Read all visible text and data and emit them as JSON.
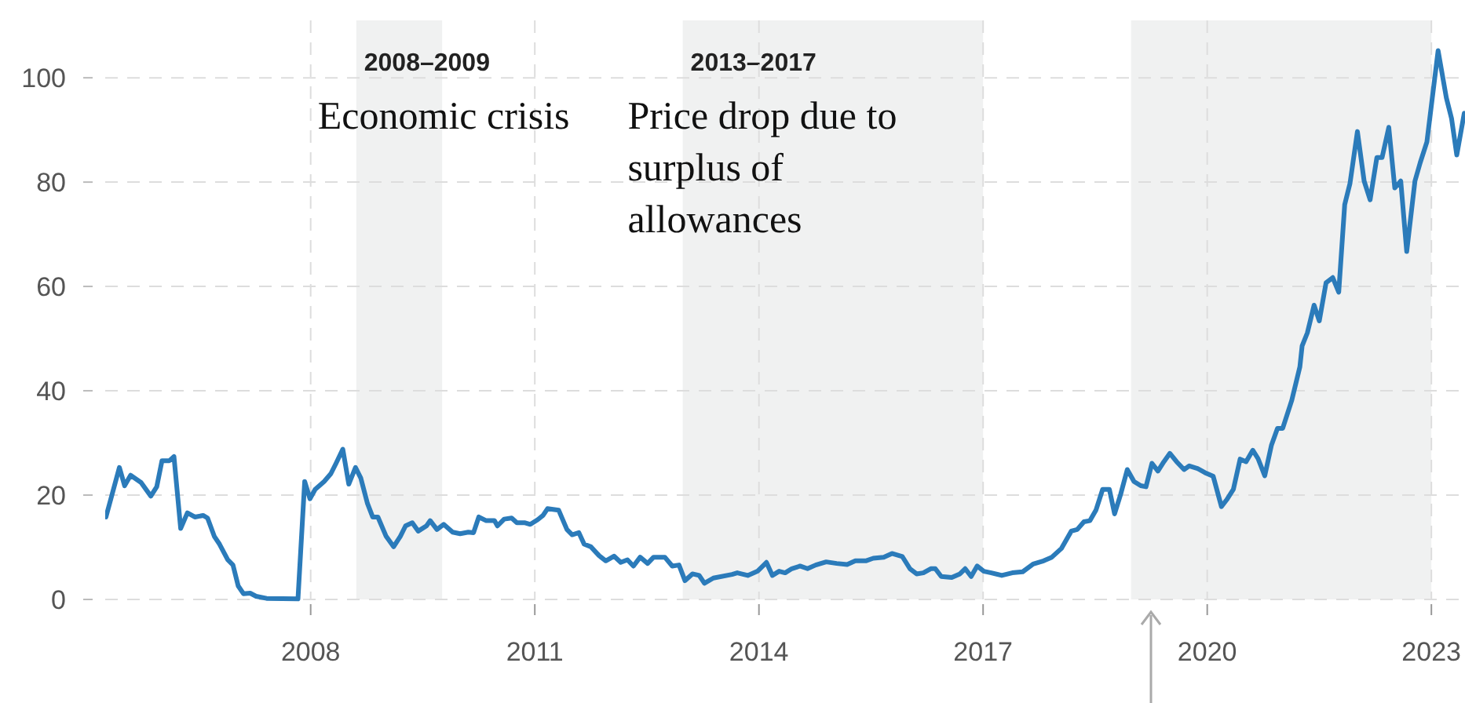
{
  "chart_data": {
    "type": "line",
    "xlim": [
      2005.25,
      2023.45
    ],
    "ylim": [
      0,
      111
    ],
    "xticks": [
      2008,
      2011,
      2014,
      2017,
      2020,
      2023
    ],
    "yticks": [
      0,
      20,
      40,
      60,
      80,
      100
    ],
    "grid": true,
    "marker": "none",
    "line_style": "solid",
    "bands": [
      {
        "axis": "x",
        "from": 2008.61,
        "to": 2009.76,
        "label": "2008–2009",
        "color": "#f0f1f1"
      },
      {
        "axis": "x",
        "from": 2012.98,
        "to": 2017.0,
        "label": "2013–2017",
        "color": "#f0f1f1"
      },
      {
        "axis": "x",
        "from": 2018.98,
        "to": 2023.0,
        "color": "#f0f1f1"
      }
    ],
    "annotations": [
      "Economic crisis",
      "Price drop due to\nsurplus of\nallowances"
    ],
    "series": [
      {
        "color": "#2b7bba",
        "x": [
          2005.26,
          2005.44,
          2005.51,
          2005.59,
          2005.73,
          2005.86,
          2005.94,
          2006.01,
          2006.11,
          2006.17,
          2006.26,
          2006.35,
          2006.45,
          2006.56,
          2006.62,
          2006.71,
          2006.78,
          2006.89,
          2006.96,
          2007.03,
          2007.1,
          2007.19,
          2007.27,
          2007.41,
          2007.83,
          2007.92,
          2007.99,
          2008.06,
          2008.18,
          2008.27,
          2008.34,
          2008.43,
          2008.51,
          2008.6,
          2008.67,
          2008.76,
          2008.83,
          2008.9,
          2009.01,
          2009.11,
          2009.2,
          2009.27,
          2009.36,
          2009.44,
          2009.55,
          2009.6,
          2009.69,
          2009.78,
          2009.9,
          2010.0,
          2010.11,
          2010.18,
          2010.25,
          2010.35,
          2010.46,
          2010.5,
          2010.59,
          2010.69,
          2010.76,
          2010.87,
          2010.94,
          2011.04,
          2011.11,
          2011.17,
          2011.32,
          2011.43,
          2011.5,
          2011.59,
          2011.66,
          2011.75,
          2011.86,
          2011.95,
          2012.06,
          2012.15,
          2012.24,
          2012.32,
          2012.41,
          2012.51,
          2012.59,
          2012.74,
          2012.84,
          2012.93,
          2013.01,
          2013.11,
          2013.2,
          2013.27,
          2013.39,
          2013.64,
          2013.71,
          2013.85,
          2013.98,
          2014.1,
          2014.18,
          2014.27,
          2014.35,
          2014.44,
          2014.55,
          2014.65,
          2014.76,
          2014.9,
          2015.04,
          2015.18,
          2015.29,
          2015.43,
          2015.53,
          2015.67,
          2015.78,
          2015.92,
          2016.02,
          2016.11,
          2016.2,
          2016.3,
          2016.36,
          2016.44,
          2016.58,
          2016.69,
          2016.76,
          2016.84,
          2016.92,
          2017.01,
          2017.11,
          2017.25,
          2017.39,
          2017.53,
          2017.67,
          2017.81,
          2017.92,
          2018.05,
          2018.18,
          2018.26,
          2018.35,
          2018.43,
          2018.51,
          2018.6,
          2018.69,
          2018.76,
          2018.84,
          2018.93,
          2019.02,
          2019.11,
          2019.18,
          2019.26,
          2019.34,
          2019.42,
          2019.5,
          2019.59,
          2019.69,
          2019.76,
          2019.87,
          2019.97,
          2020.08,
          2020.19,
          2020.26,
          2020.35,
          2020.44,
          2020.52,
          2020.61,
          2020.68,
          2020.77,
          2020.86,
          2020.94,
          2021.01,
          2021.13,
          2021.24,
          2021.27,
          2021.34,
          2021.43,
          2021.5,
          2021.59,
          2021.68,
          2021.76,
          2021.84,
          2021.91,
          2022.01,
          2022.1,
          2022.18,
          2022.27,
          2022.34,
          2022.43,
          2022.51,
          2022.59,
          2022.67,
          2022.78,
          2022.85,
          2022.94,
          2023.09,
          2023.2,
          2023.27,
          2023.34,
          2023.44
        ],
        "values": [
          15.8,
          25.3,
          21.8,
          23.8,
          22.4,
          19.8,
          21.6,
          26.6,
          26.6,
          27.4,
          13.6,
          16.6,
          15.8,
          16.1,
          15.6,
          12.1,
          10.6,
          7.6,
          6.6,
          2.6,
          1.1,
          1.2,
          0.6,
          0.2,
          0.1,
          22.6,
          19.3,
          21.1,
          22.6,
          24.1,
          26.1,
          28.8,
          22.1,
          25.3,
          23.3,
          18.4,
          15.8,
          15.8,
          12.1,
          10.1,
          12.1,
          14.1,
          14.7,
          13.1,
          14.1,
          15.1,
          13.4,
          14.4,
          12.9,
          12.6,
          12.9,
          12.8,
          15.8,
          15.1,
          15.1,
          14.1,
          15.4,
          15.6,
          14.7,
          14.7,
          14.4,
          15.3,
          16.1,
          17.4,
          17.1,
          13.4,
          12.4,
          12.8,
          10.6,
          10.1,
          8.4,
          7.4,
          8.3,
          7.1,
          7.6,
          6.4,
          8.1,
          6.9,
          8.1,
          8.1,
          6.4,
          6.6,
          3.6,
          4.9,
          4.6,
          3.1,
          4.1,
          4.8,
          5.1,
          4.6,
          5.4,
          7.1,
          4.6,
          5.4,
          5.1,
          5.9,
          6.4,
          5.9,
          6.6,
          7.2,
          6.9,
          6.7,
          7.4,
          7.4,
          7.9,
          8.1,
          8.8,
          8.2,
          5.9,
          4.9,
          5.1,
          5.9,
          5.9,
          4.4,
          4.2,
          4.9,
          5.9,
          4.4,
          6.4,
          5.4,
          5.1,
          4.6,
          5.1,
          5.3,
          6.8,
          7.4,
          8.1,
          9.8,
          13.1,
          13.4,
          14.9,
          15.1,
          17.1,
          21.1,
          21.1,
          16.4,
          20.1,
          24.9,
          22.6,
          21.8,
          21.6,
          26.1,
          24.6,
          26.4,
          28.0,
          26.4,
          24.9,
          25.6,
          25.1,
          24.3,
          23.6,
          17.8,
          19.1,
          21.1,
          26.9,
          26.4,
          28.6,
          27.0,
          23.7,
          29.6,
          32.8,
          32.8,
          38.1,
          44.6,
          48.6,
          51.1,
          56.4,
          53.4,
          60.7,
          61.7,
          58.9,
          75.7,
          79.7,
          89.7,
          80.2,
          76.6,
          84.7,
          84.7,
          90.5,
          78.9,
          80.2,
          66.7,
          80.2,
          83.7,
          87.7,
          105.2,
          96.2,
          92.2,
          85.2,
          93.2
        ]
      }
    ]
  }
}
